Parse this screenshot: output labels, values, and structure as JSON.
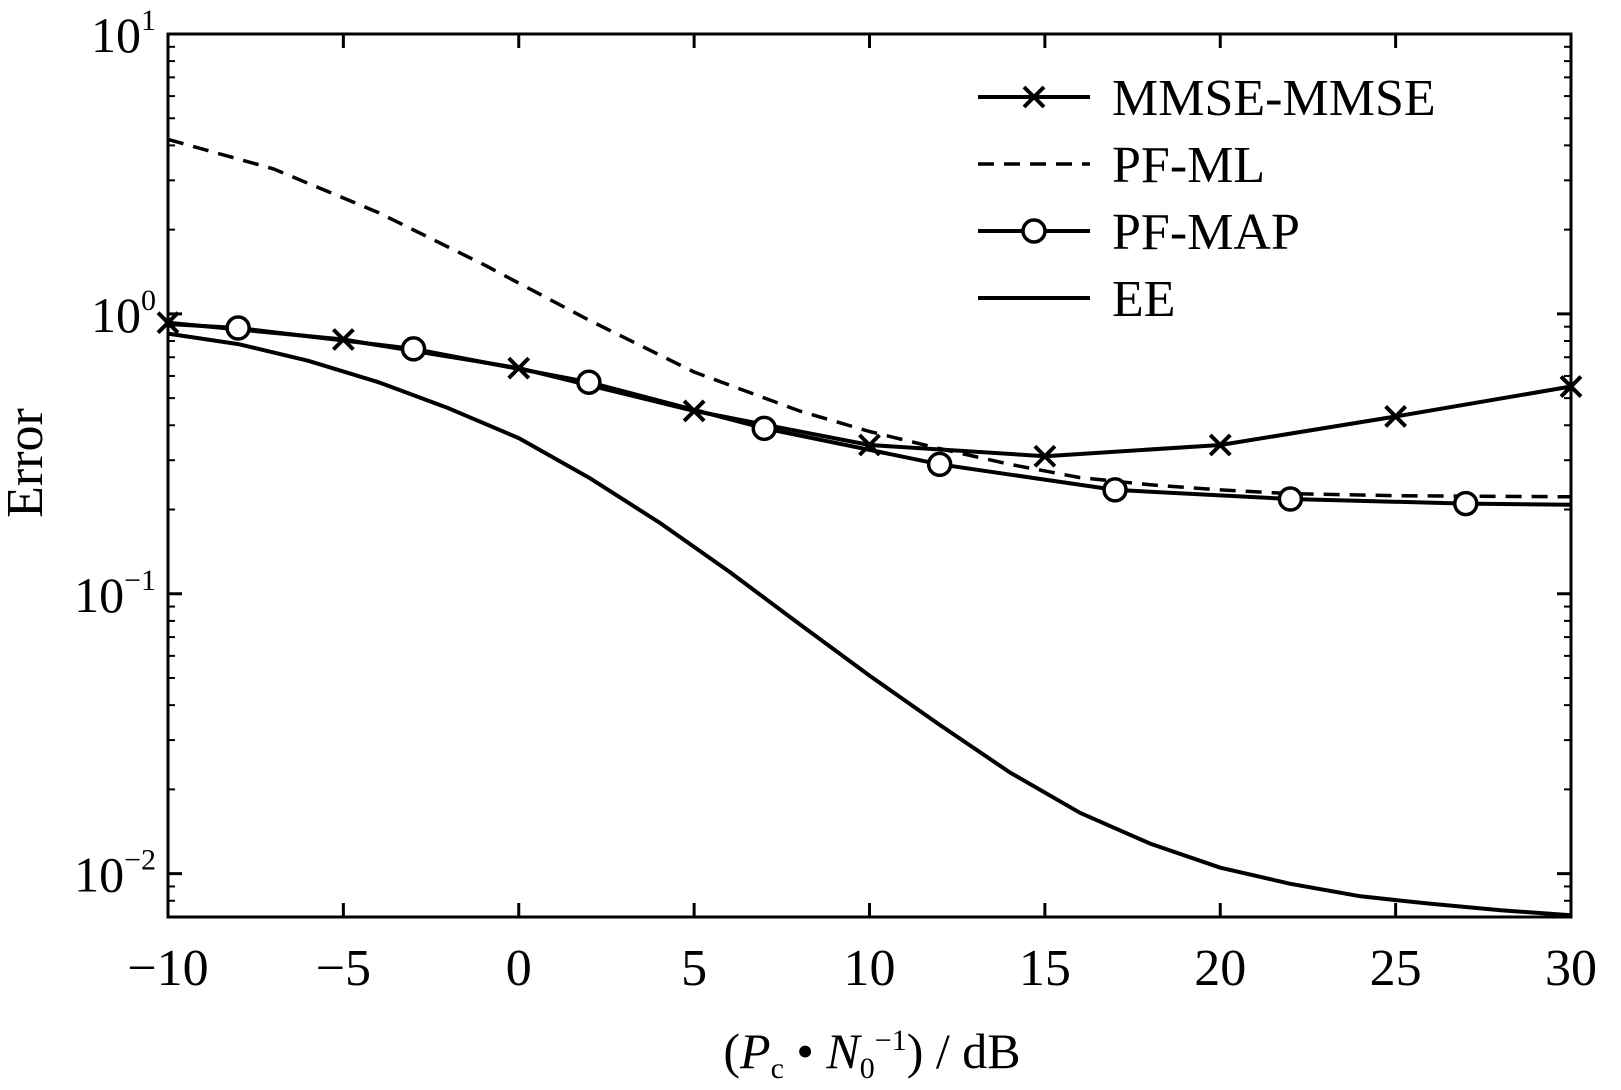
{
  "chart_data": {
    "type": "line",
    "title": "",
    "xlabel": {
      "open": "(",
      "p": "P",
      "p_sub": "c",
      "dot": " • ",
      "n": "N",
      "n_sub": "0",
      "n_sup": "−1",
      "close": ") / dB"
    },
    "ylabel": "Error",
    "xlim": [
      -10,
      30
    ],
    "ylim": [
      0.007,
      10
    ],
    "yscale": "log",
    "grid": false,
    "legend_position": "top-right",
    "x_ticks": [
      {
        "value": -10,
        "label": "−10"
      },
      {
        "value": -5,
        "label": "−5"
      },
      {
        "value": 0,
        "label": "0"
      },
      {
        "value": 5,
        "label": "5"
      },
      {
        "value": 10,
        "label": "10"
      },
      {
        "value": 15,
        "label": "15"
      },
      {
        "value": 20,
        "label": "20"
      },
      {
        "value": 25,
        "label": "25"
      },
      {
        "value": 30,
        "label": "30"
      }
    ],
    "y_ticks": [
      {
        "value": 10,
        "base": "10",
        "exp": "1"
      },
      {
        "value": 1,
        "base": "10",
        "exp": "0"
      },
      {
        "value": 0.1,
        "base": "10",
        "exp": "−1"
      },
      {
        "value": 0.01,
        "base": "10",
        "exp": "−2"
      }
    ],
    "series": [
      {
        "name": "MMSE-MMSE",
        "style": "solid",
        "marker": "x",
        "x": [
          -10,
          -5,
          0,
          5,
          10,
          15,
          20,
          25,
          30
        ],
        "y": [
          0.93,
          0.81,
          0.64,
          0.45,
          0.34,
          0.31,
          0.34,
          0.43,
          0.55
        ],
        "marker_x": [
          -10,
          -5,
          0,
          5,
          10,
          15,
          20,
          25,
          30
        ]
      },
      {
        "name": "PF-ML",
        "style": "dashed",
        "marker": "none",
        "x": [
          -10,
          -7,
          -4,
          -1,
          2,
          5,
          8,
          10,
          12,
          14,
          16,
          18,
          20,
          22,
          25,
          30
        ],
        "y": [
          4.2,
          3.3,
          2.3,
          1.5,
          0.95,
          0.62,
          0.45,
          0.38,
          0.33,
          0.29,
          0.26,
          0.245,
          0.235,
          0.228,
          0.224,
          0.222
        ]
      },
      {
        "name": "PF-MAP",
        "style": "solid",
        "marker": "circle",
        "x": [
          -10,
          -8,
          -3,
          2,
          7,
          12,
          17,
          22,
          27,
          30
        ],
        "y": [
          0.92,
          0.89,
          0.75,
          0.57,
          0.39,
          0.29,
          0.235,
          0.218,
          0.21,
          0.208
        ],
        "marker_x": [
          -8,
          -3,
          2,
          7,
          12,
          17,
          22,
          27
        ]
      },
      {
        "name": "EE",
        "style": "solid",
        "marker": "none",
        "x": [
          -10,
          -8,
          -6,
          -4,
          -2,
          0,
          2,
          4,
          6,
          8,
          10,
          12,
          14,
          16,
          18,
          20,
          22,
          24,
          26,
          28,
          30
        ],
        "y": [
          0.85,
          0.78,
          0.68,
          0.57,
          0.46,
          0.36,
          0.26,
          0.18,
          0.12,
          0.078,
          0.051,
          0.034,
          0.023,
          0.0165,
          0.0128,
          0.0105,
          0.0092,
          0.0083,
          0.0078,
          0.0074,
          0.0071
        ]
      }
    ]
  }
}
